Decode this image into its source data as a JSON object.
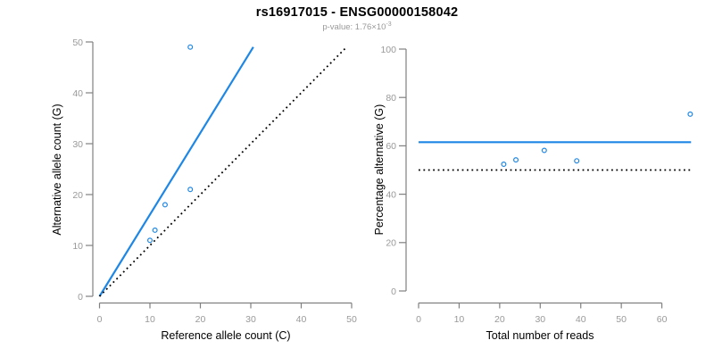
{
  "figure": {
    "title": "rs16917015 - ENSG00000158042",
    "subtitle_prefix": "p-value: 1.76×10",
    "subtitle_exponent": "-3"
  },
  "colors": {
    "accent_blue": "#1E87E5",
    "axis_line_gray": "#808080",
    "tick_label_gray": "#999999",
    "axis_title_color": "#000000",
    "point_stroke": "#1E87E5",
    "dotted_line_color": "#000000"
  },
  "chart_data": [
    {
      "id": "allele-counts",
      "type": "scatter",
      "xlabel": "Reference allele count (C)",
      "ylabel": "Alternative allele count (G)",
      "xlim": [
        0,
        50
      ],
      "ylim": [
        0,
        50
      ],
      "xticks": [
        0,
        10,
        20,
        30,
        40,
        50
      ],
      "yticks": [
        0,
        10,
        20,
        30,
        40,
        50
      ],
      "grid": false,
      "points": [
        [
          10,
          11
        ],
        [
          11,
          13
        ],
        [
          13,
          18
        ],
        [
          18,
          21
        ],
        [
          18,
          49
        ]
      ],
      "lines": [
        {
          "name": "fit-line",
          "style": "solid",
          "color": "#1E87E5",
          "from": [
            0,
            0
          ],
          "to": [
            30.5,
            49
          ]
        },
        {
          "name": "identity-line",
          "style": "dotted",
          "color": "#000000",
          "from": [
            0,
            0
          ],
          "to": [
            49,
            49
          ]
        }
      ]
    },
    {
      "id": "percentage-by-depth",
      "type": "scatter",
      "xlabel": "Total number of reads",
      "ylabel": "Percentage alternative (G)",
      "xlim": [
        0,
        67
      ],
      "ylim": [
        0,
        100
      ],
      "xticks": [
        0,
        10,
        20,
        30,
        40,
        50,
        60
      ],
      "yticks": [
        0,
        20,
        40,
        60,
        80,
        100
      ],
      "grid": false,
      "points": [
        [
          21,
          52.4
        ],
        [
          24,
          54.2
        ],
        [
          31,
          58.1
        ],
        [
          39,
          53.8
        ],
        [
          67,
          73.1
        ]
      ],
      "lines": [
        {
          "name": "mean-percentage-line",
          "style": "solid",
          "color": "#1E87E5",
          "from": [
            0,
            61.5
          ],
          "to": [
            67.2,
            61.5
          ]
        },
        {
          "name": "fifty-percent-line",
          "style": "dotted",
          "color": "#000000",
          "from": [
            0,
            50
          ],
          "to": [
            67.2,
            50
          ]
        }
      ]
    }
  ]
}
